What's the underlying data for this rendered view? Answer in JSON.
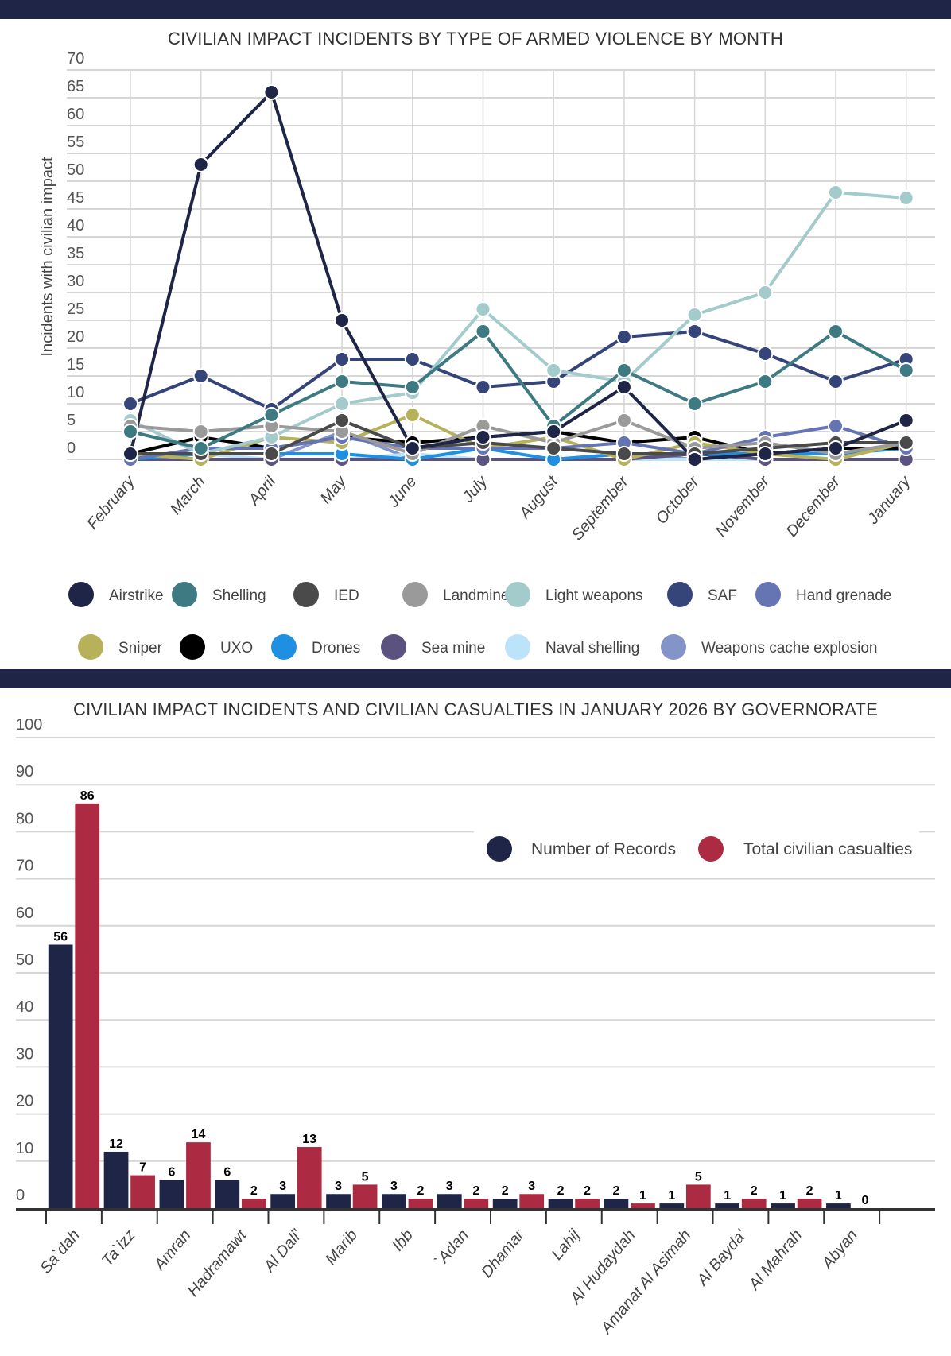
{
  "chart_data": [
    {
      "type": "line",
      "title": "CIVILIAN IMPACT INCIDENTS BY TYPE OF ARMED VIOLENCE BY MONTH",
      "xlabel": "",
      "ylabel": "Incidents with civilian impact",
      "ylim": [
        0,
        70
      ],
      "yticks": [
        0,
        5,
        10,
        15,
        20,
        25,
        30,
        35,
        40,
        45,
        50,
        55,
        60,
        65,
        70
      ],
      "grid": true,
      "legend_position": "bottom",
      "x": [
        "February",
        "March",
        "April",
        "May",
        "June",
        "July",
        "August",
        "September",
        "October",
        "November",
        "December",
        "January"
      ],
      "series": [
        {
          "name": "Airstrike",
          "color": "#1f2547",
          "values": [
            1,
            53,
            66,
            25,
            2,
            4,
            5,
            13,
            0,
            1,
            2,
            7
          ]
        },
        {
          "name": "Shelling",
          "color": "#3d7a82",
          "values": [
            5,
            2,
            8,
            14,
            13,
            23,
            6,
            16,
            10,
            14,
            23,
            16
          ]
        },
        {
          "name": "IED",
          "color": "#4a4a4a",
          "values": [
            1,
            1,
            1,
            7,
            2,
            3,
            2,
            1,
            1,
            2,
            3,
            3
          ]
        },
        {
          "name": "Landmine",
          "color": "#9a9a9a",
          "values": [
            6,
            5,
            6,
            5,
            1,
            6,
            3,
            7,
            2,
            3,
            1,
            3
          ]
        },
        {
          "name": "Light weapons",
          "color": "#a3cbcc",
          "values": [
            7,
            1,
            4,
            10,
            12,
            27,
            16,
            14,
            26,
            30,
            48,
            47
          ]
        },
        {
          "name": "SAF",
          "color": "#354579",
          "values": [
            10,
            15,
            9,
            18,
            18,
            13,
            14,
            22,
            23,
            19,
            14,
            18
          ]
        },
        {
          "name": "Hand grenade",
          "color": "#6575b4",
          "values": [
            0,
            2,
            2,
            4,
            2,
            2,
            2,
            3,
            1,
            4,
            6,
            2
          ]
        },
        {
          "name": "Sniper",
          "color": "#b7b15a",
          "values": [
            1,
            0,
            4,
            3,
            8,
            2,
            4,
            0,
            3,
            1,
            0,
            3
          ]
        },
        {
          "name": "UXO",
          "color": "#000000",
          "values": [
            1,
            4,
            2,
            4,
            3,
            4,
            5,
            3,
            4,
            1,
            2,
            2
          ]
        },
        {
          "name": "Drones",
          "color": "#1e8fe1",
          "values": [
            0,
            1,
            1,
            1,
            0,
            2,
            0,
            1,
            1,
            1,
            1,
            2
          ]
        },
        {
          "name": "Sea mine",
          "color": "#5c527f",
          "values": [
            0,
            0,
            0,
            0,
            0,
            0,
            0,
            0,
            1,
            0,
            0,
            0
          ]
        },
        {
          "name": "Naval shelling",
          "color": "#bde3fb",
          "values": [
            0,
            1,
            0,
            0,
            1,
            0,
            0,
            0,
            0,
            0,
            0,
            0
          ]
        },
        {
          "name": "Weapons cache explosion",
          "color": "#8594c8",
          "values": [
            0,
            0,
            0,
            5,
            0,
            0,
            0,
            1,
            0,
            0,
            0,
            0
          ]
        }
      ]
    },
    {
      "type": "bar",
      "title": "CIVILIAN IMPACT INCIDENTS AND CIVILIAN CASUALTIES IN JANUARY 2026 BY GOVERNORATE",
      "xlabel": "",
      "ylabel": "",
      "ylim": [
        0,
        100
      ],
      "yticks": [
        0,
        10,
        20,
        30,
        40,
        50,
        60,
        70,
        80,
        90,
        100
      ],
      "grid": true,
      "legend_position": "top-right",
      "categories": [
        "Sa`dah",
        "Ta`izz",
        "Amran",
        "Hadramawt",
        "Al Dali'",
        "Marib",
        "Ibb",
        "`Adan",
        "Dhamar",
        "Lahij",
        "Al Hudaydah",
        "Amanat Al Asimah",
        "Al Bayda'",
        "Al Mahrah",
        "Abyan"
      ],
      "series": [
        {
          "name": "Number of Records",
          "color": "#1f2547",
          "values": [
            56,
            12,
            6,
            6,
            3,
            3,
            3,
            3,
            2,
            2,
            2,
            1,
            1,
            1,
            1
          ]
        },
        {
          "name": "Total civilian casualties",
          "color": "#ac2b43",
          "values": [
            86,
            7,
            14,
            2,
            13,
            5,
            2,
            2,
            3,
            2,
            1,
            5,
            2,
            2,
            0
          ]
        }
      ]
    }
  ]
}
